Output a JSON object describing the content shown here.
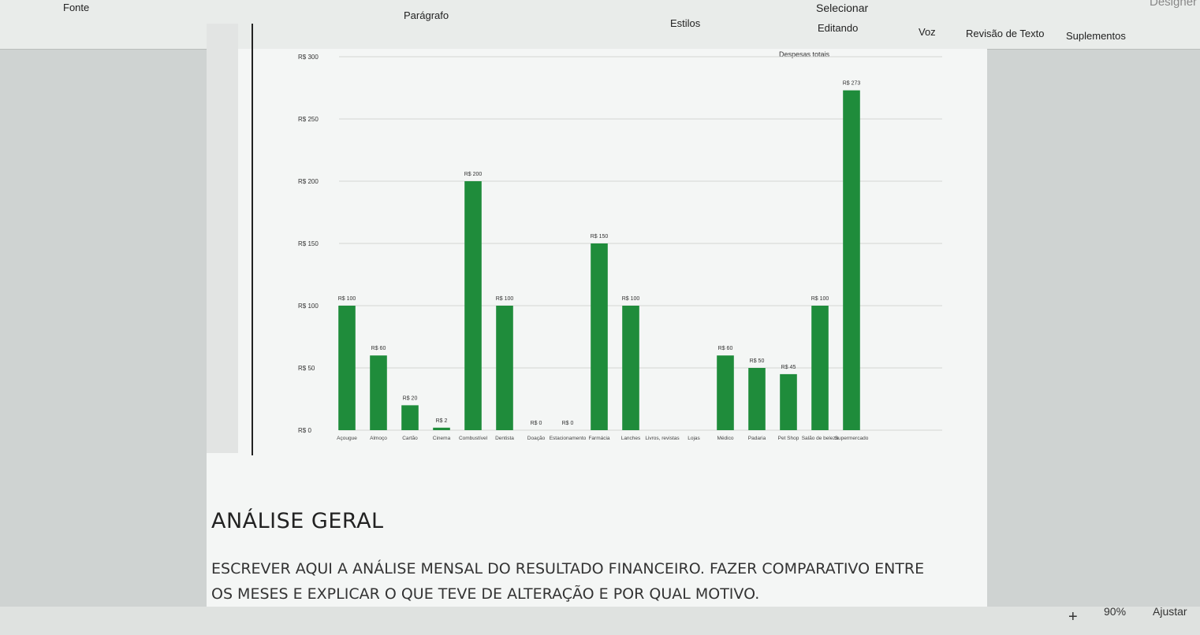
{
  "ribbon": {
    "groups": [
      "Fonte",
      "Parágrafo",
      "Estilos",
      "Editando",
      "Voz",
      "Revisão de Texto",
      "Suplementos",
      "Designer"
    ],
    "select": "Selecionar"
  },
  "chart_data": {
    "type": "bar",
    "title": "Despesas totais",
    "categories": [
      "Açougue",
      "Almoço",
      "Cartão",
      "Cinema",
      "Combustível",
      "Dentista",
      "Doação",
      "Estacionamento",
      "Farmácia",
      "Lanches",
      "Livros, revistas",
      "Lojas",
      "Médico",
      "Padaria",
      "Pet Shop",
      "Salão de beleza",
      "Supermercado"
    ],
    "series": [
      {
        "name": "Despesas totais",
        "color": "#1f8c3b",
        "values": [
          100,
          60,
          20,
          2,
          200,
          100,
          0,
          0,
          150,
          100,
          null,
          null,
          60,
          50,
          45,
          100,
          273
        ],
        "value_labels": [
          "R$ 100",
          "R$ 60",
          "R$ 20",
          "R$ 2",
          "R$ 200",
          "R$ 100",
          "R$ 0",
          "R$ 0",
          "R$ 150",
          "R$ 100",
          null,
          null,
          "R$ 60",
          "R$ 50",
          "R$ 45",
          "R$ 100",
          "R$ 273"
        ]
      }
    ],
    "ylim": [
      0,
      300
    ],
    "yticks": [
      {
        "value": 0,
        "label": "R$ 0"
      },
      {
        "value": 50,
        "label": "R$ 50"
      },
      {
        "value": 100,
        "label": "R$ 100"
      },
      {
        "value": 150,
        "label": "R$ 150"
      },
      {
        "value": 200,
        "label": "R$ 200"
      },
      {
        "value": 250,
        "label": "R$ 250"
      },
      {
        "value": 300,
        "label": "R$ 300"
      }
    ],
    "grid": true
  },
  "document": {
    "heading": "ANÁLISE GERAL",
    "paragraph": "ESCREVER AQUI A ANÁLISE MENSAL DO RESULTADO FINANCEIRO. FAZER COMPARATIVO ENTRE OS MESES E EXPLICAR O QUE TEVE DE ALTERAÇÃO E POR QUAL MOTIVO."
  },
  "status_bar": {
    "zoom": "90%",
    "fit": "Ajustar"
  }
}
